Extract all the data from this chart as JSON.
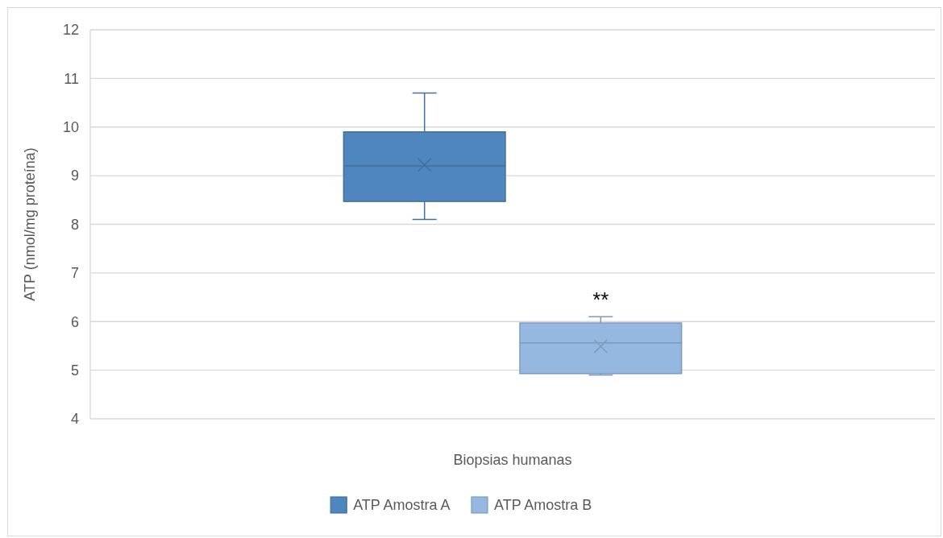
{
  "chart_data": {
    "type": "box",
    "categories": [
      "Biopsias humanas"
    ],
    "ylabel": "ATP (nmol/mg proteína)",
    "ylim": [
      4,
      12
    ],
    "yticks": [
      4,
      5,
      6,
      7,
      8,
      9,
      10,
      11,
      12
    ],
    "grid": "y",
    "legend": "bottom",
    "marker": "cross",
    "series": [
      {
        "name": "ATP Amostra A",
        "color": "#4f86bd",
        "boxes": [
          {
            "low": 8.1,
            "q1": 8.47,
            "median": 9.2,
            "q3": 9.9,
            "high": 10.7,
            "mean": 9.22
          }
        ]
      },
      {
        "name": "ATP Amostra B",
        "color": "#95b8e0",
        "boxes": [
          {
            "low": 4.9,
            "q1": 4.93,
            "median": 5.56,
            "q3": 5.97,
            "high": 6.1,
            "mean": 5.49
          }
        ]
      }
    ],
    "annotations": [
      "**"
    ]
  }
}
